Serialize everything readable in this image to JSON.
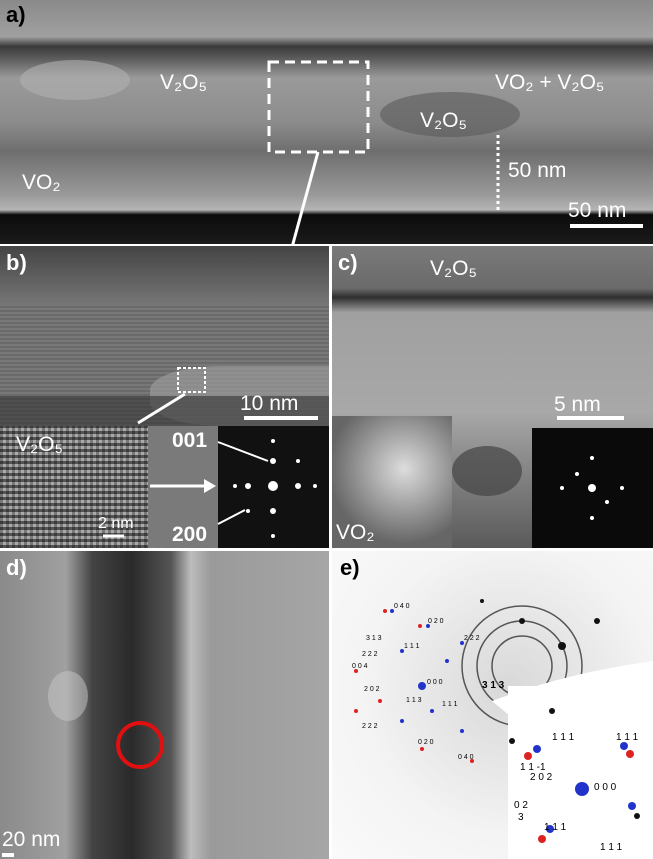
{
  "panels": {
    "a": {
      "label": "a)",
      "annotations": [
        "V₂O₅",
        "VO₂ + V₂O₅",
        "V₂O₅",
        "VO₂",
        "50 nm"
      ],
      "scale_bar": "50 nm"
    },
    "b": {
      "label": "b)",
      "scale_bar": "10 nm",
      "inset_label": "V₂O₅",
      "inset_scale_bar": "2 nm",
      "fft_labels": [
        "001",
        "200"
      ]
    },
    "c": {
      "label": "c)",
      "annotations": [
        "V₂O₅",
        "VO₂"
      ],
      "scale_bar": "5 nm"
    },
    "d": {
      "label": "d)",
      "scale_bar": "20 nm"
    },
    "e": {
      "label": "e)",
      "indices": [
        "0 4 0",
        "0 2 0",
        "3 1 3",
        "2 2 2",
        "0 0 4",
        "1 1 1",
        "2 2 2",
        "0 0 0",
        "2 0 2",
        "1 1 3",
        "1 1 1",
        "2 2 2",
        "0 2 0",
        "0 4 0",
        "3 1 3"
      ],
      "inset_indices": [
        "1 1 1",
        "1 1 1",
        "1 1 -1",
        "2 0 2",
        "0 0 0",
        "0 2",
        "3",
        "1 1 1",
        "1 1 1"
      ]
    }
  }
}
